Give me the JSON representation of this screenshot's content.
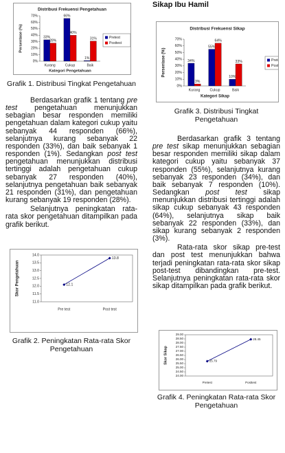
{
  "document": {
    "heading": "Sikap Ibu Hamil",
    "captions": [
      "Grafik 1. Distribusi Tingkat Pengetahuan",
      "Grafik 2. Peningkatan Rata-rata Skor Pengetahuan",
      "Grafik 3. Distribusi Tingkat Pengetahuan",
      "Grafik 4. Peningkatan Rata-rata Skor Pengetahuan"
    ],
    "paragraphs": [
      [
        "Berdasarkan grafik 1 tentang ",
        "pre test",
        " pengetahuan menunjukkan sebagian besar responden memiliki pengetahuan dalam kategori cukup yaitu sebanyak 44 responden (66%), selanjutnya kurang sebanyak 22 responden (33%), dan baik sebanyak 1 responden (1%). Sedangkan ",
        "post test",
        " pengetahuan menunjukkan distribusi tertinggi adalah pengetahuan cukup sebanyak 27 responden (40%), selanjutnya pengetahuan baik sebanyak 21 responden (31%), dan pengetahuan kurang sebanyak 19 responden (28%)."
      ],
      [
        "Selanjutnya peningkatan rata-rata skor pengetahuan ditampilkan pada grafik berikut."
      ],
      [
        "Berdasarkan grafik 3 tentang ",
        "pre test",
        " sikap menunjukkan sebagian besar responden memiliki sikap dalam kategori cukup yaitu sebanyak 37 responden (55%), selanjutnya kurang sebanyak 23 responden (34%), dan baik sebanyak 7 responden (10%). Sedangkan ",
        "post test",
        " sikap menunjukkan distribusi tertinggi adalah sikap cukup sebanyak 43 responden (64%), selanjutnya sikap baik sebanyak 22 responden (33%), dan sikap kurang sebanyak 2 responden (3%)."
      ],
      [
        "Rata-rata skor sikap pre-test dan post test menunjukkan bahwa terjadi peningkatan rata-rata skor sikap post-test dibandingkan pre-test. Selanjutnya peningkatan rata-rata skor sikap ditampilkan pada grafik berikut."
      ]
    ]
  },
  "chart_data": [
    {
      "type": "bar",
      "title": "Distribusi Frekuensi Pengetahuan",
      "categories": [
        "Kurang",
        "Cukup",
        "Baik"
      ],
      "series": [
        {
          "name": "Pretest",
          "color": "#000099",
          "values": [
            33,
            66,
            1
          ],
          "value_labels": [
            "33%",
            "66%",
            "1%"
          ]
        },
        {
          "name": "Posttest",
          "color": "#e00000",
          "values": [
            28,
            40,
            31
          ],
          "value_labels": [
            "28%",
            "40%",
            "31%"
          ]
        }
      ],
      "ylim": [
        0,
        70
      ],
      "yticks": [
        {
          "value": 0,
          "label": "0%"
        },
        {
          "value": 10,
          "label": "10%"
        },
        {
          "value": 20,
          "label": "20%"
        },
        {
          "value": 30,
          "label": "30%"
        },
        {
          "value": 40,
          "label": "40%"
        },
        {
          "value": 50,
          "label": "50%"
        },
        {
          "value": 60,
          "label": "60%"
        },
        {
          "value": 70,
          "label": "70%"
        }
      ],
      "xlabel": "Kategori Pengetahuan",
      "ylabel": "Persentase (%)",
      "legend": "right"
    },
    {
      "type": "line",
      "categories": [
        "Pre test",
        "Post test"
      ],
      "values": [
        12.1,
        13.8
      ],
      "color": "#000080",
      "ylim": [
        11,
        14
      ],
      "yticks": [
        {
          "value": 11,
          "label": "11.0"
        },
        11.5,
        {
          "value": 12,
          "label": "12.0"
        },
        12.5,
        {
          "value": 13,
          "label": "13.0"
        },
        13.5,
        {
          "value": 14,
          "label": "14.0"
        }
      ],
      "ylabel": "Skor Pengetahuan"
    },
    {
      "type": "bar",
      "title": "Distribusi Frekuensi Sikap",
      "categories": [
        "Kurang",
        "Cukup",
        "Baik"
      ],
      "series": [
        {
          "name": "Pretest",
          "color": "#000099",
          "values": [
            34,
            55,
            10
          ],
          "value_labels": [
            "34%",
            "55%",
            "10%"
          ]
        },
        {
          "name": "Posttest",
          "color": "#e00000",
          "values": [
            3,
            64,
            33
          ],
          "value_labels": [
            "3%",
            "64%",
            "33%"
          ]
        }
      ],
      "ylim": [
        0,
        70
      ],
      "yticks": [
        {
          "value": 0,
          "label": "0%"
        },
        {
          "value": 10,
          "label": "10%"
        },
        {
          "value": 20,
          "label": "20%"
        },
        {
          "value": 30,
          "label": "30%"
        },
        {
          "value": 40,
          "label": "40%"
        },
        {
          "value": 50,
          "label": "50%"
        },
        {
          "value": 60,
          "label": "60%"
        },
        {
          "value": 70,
          "label": "70%"
        }
      ],
      "xlabel": "Kategori Sikap",
      "ylabel": "Persentase (%)",
      "legend": "right"
    },
    {
      "type": "line",
      "categories": [
        "Pretest",
        "Posttest"
      ],
      "values": [
        25.79,
        28.45
      ],
      "color": "#000080",
      "ylim": [
        24,
        29
      ],
      "yticks": [
        {
          "value": 24,
          "label": "24.00"
        },
        {
          "value": 24.5,
          "label": "24.50"
        },
        {
          "value": 25,
          "label": "25.00"
        },
        {
          "value": 25.5,
          "label": "25.50"
        },
        {
          "value": 26,
          "label": "26.00"
        },
        {
          "value": 26.5,
          "label": "26.50"
        },
        {
          "value": 27,
          "label": "27.00"
        },
        {
          "value": 27.5,
          "label": "27.50"
        },
        {
          "value": 28,
          "label": "28.00"
        },
        {
          "value": 28.5,
          "label": "28.50"
        },
        {
          "value": 29,
          "label": "29.00"
        }
      ],
      "ylabel": "Skor Sikap"
    }
  ]
}
